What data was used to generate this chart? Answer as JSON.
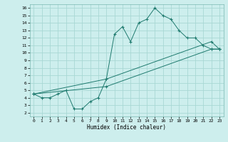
{
  "xlabel": "Humidex (Indice chaleur)",
  "xlim": [
    -0.5,
    23.5
  ],
  "ylim": [
    1.5,
    16.5
  ],
  "xticks": [
    0,
    1,
    2,
    3,
    4,
    5,
    6,
    7,
    8,
    9,
    10,
    11,
    12,
    13,
    14,
    15,
    16,
    17,
    18,
    19,
    20,
    21,
    22,
    23
  ],
  "yticks": [
    2,
    3,
    4,
    5,
    6,
    7,
    8,
    9,
    10,
    11,
    12,
    13,
    14,
    15,
    16
  ],
  "background_color": "#cdeeed",
  "grid_color": "#a8d8d4",
  "line_color": "#1e7a6e",
  "line1_x": [
    0,
    1,
    2,
    3,
    4,
    5,
    6,
    7,
    8,
    9,
    10,
    11,
    12,
    13,
    14,
    15,
    16,
    17,
    18,
    19,
    20,
    21,
    22,
    23
  ],
  "line1_y": [
    4.5,
    4.0,
    4.0,
    4.5,
    5.0,
    2.5,
    2.5,
    3.5,
    4.0,
    6.5,
    12.5,
    13.5,
    11.5,
    14.0,
    14.5,
    16.0,
    15.0,
    14.5,
    13.0,
    12.0,
    12.0,
    11.0,
    10.5,
    10.5
  ],
  "line2_x": [
    0,
    9,
    22,
    23
  ],
  "line2_y": [
    4.5,
    5.5,
    10.5,
    10.5
  ],
  "line3_x": [
    0,
    9,
    22,
    23
  ],
  "line3_y": [
    4.5,
    6.5,
    11.5,
    10.5
  ]
}
